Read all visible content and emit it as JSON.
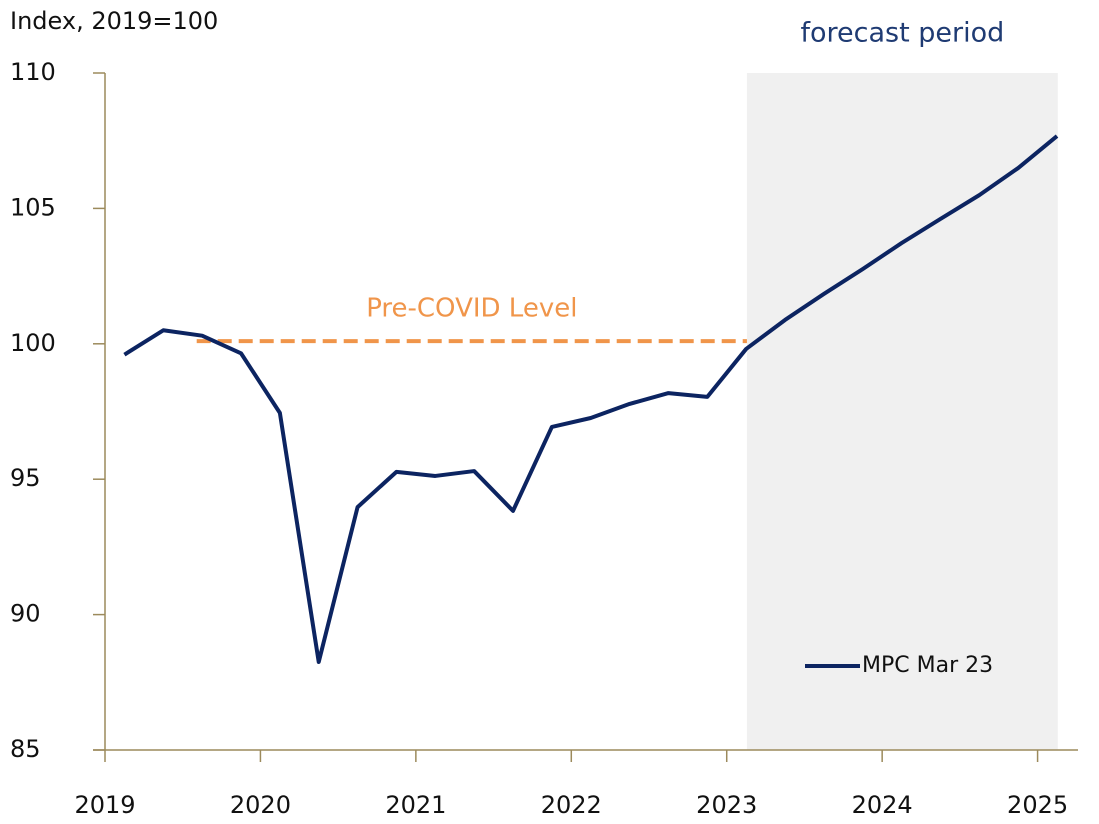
{
  "chart_data": {
    "type": "line",
    "y_label": "Index, 2019=100",
    "x": [
      2019.125,
      2019.375,
      2019.625,
      2019.875,
      2020.125,
      2020.375,
      2020.625,
      2020.875,
      2021.125,
      2021.375,
      2021.625,
      2021.875,
      2022.125,
      2022.375,
      2022.625,
      2022.875,
      2023.125,
      2023.375,
      2023.625,
      2023.875,
      2024.125,
      2024.375,
      2024.625,
      2024.875,
      2025.125
    ],
    "series": [
      {
        "name": "MPC Mar 23",
        "color": "#0c2461",
        "values": [
          99.6,
          100.5,
          100.3,
          99.65,
          97.45,
          88.25,
          93.97,
          95.27,
          95.12,
          95.3,
          93.83,
          96.93,
          97.26,
          97.78,
          98.18,
          98.04,
          99.81,
          100.88,
          101.84,
          102.76,
          103.72,
          104.61,
          105.49,
          106.49,
          107.67
        ]
      }
    ],
    "xlim": [
      2019,
      2025.26
    ],
    "xticks": [
      2019,
      2020,
      2021,
      2022,
      2023,
      2024,
      2025
    ],
    "ylim": [
      85,
      110
    ],
    "yticks": [
      85,
      90,
      95,
      100,
      105,
      110
    ],
    "reference_line": {
      "label": "Pre-COVID Level",
      "value": 100.1,
      "x_range": [
        2019.59,
        2023.13
      ],
      "color": "#f0954a"
    },
    "shaded_region": {
      "label": "forecast period",
      "x_range": [
        2023.13,
        2025.13
      ],
      "color": "#f0f0f0"
    },
    "legend": "lower right"
  }
}
